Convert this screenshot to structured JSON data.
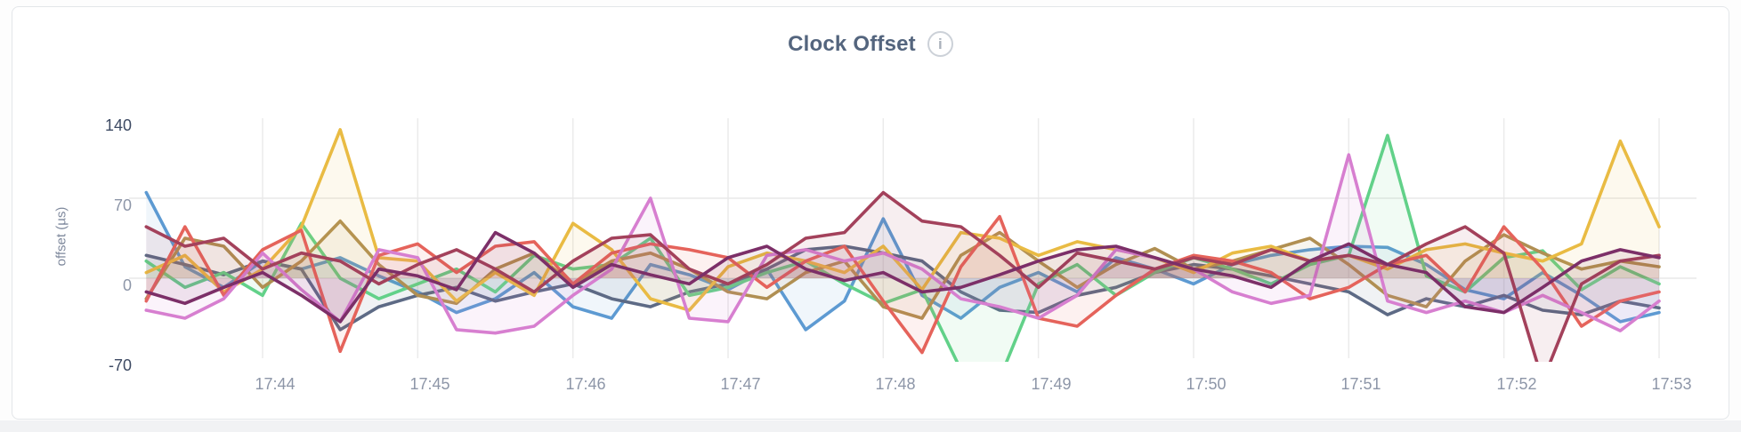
{
  "page": {
    "background": "#ffffff",
    "bottom_strip_color": "#f1f2f4"
  },
  "card": {
    "title": "Clock Offset",
    "title_color": "#54657e",
    "info_icon_glyph": "i"
  },
  "chart_data": {
    "type": "line",
    "title": "Clock Offset",
    "xlabel": "",
    "ylabel": "offset (µs)",
    "legend_position": "none",
    "grid": "on",
    "ylim": [
      -72.5,
      150
    ],
    "y_tick_values": [
      140,
      70,
      0,
      -70
    ],
    "y_tick_labels": [
      "140",
      "70",
      "0",
      "-70"
    ],
    "grid_y_values": [
      70,
      0
    ],
    "x_tick_labels": [
      "17:44",
      "17:45",
      "17:46",
      "17:47",
      "17:48",
      "17:49",
      "17:50",
      "17:51",
      "17:52",
      "17:53"
    ],
    "x_tick_minutes": [
      44,
      45,
      46,
      47,
      48,
      49,
      50,
      51,
      52,
      53
    ],
    "x_start_minute": 43.25,
    "x_step_minute": 0.25,
    "note_clipping": "values beyond -72 are clipped at the bottom of the plot",
    "series": [
      {
        "color": "#5d9ad2",
        "values": [
          75,
          10,
          -8,
          15,
          8,
          18,
          2,
          -12,
          -30,
          -18,
          5,
          -25,
          -35,
          12,
          3,
          -10,
          8,
          -45,
          -20,
          52,
          -15,
          -35,
          -8,
          5,
          -12,
          18,
          8,
          -5,
          12,
          20,
          25,
          28,
          27,
          12,
          -10,
          -18,
          5,
          -15,
          -38,
          -30
        ]
      },
      {
        "color": "#5d6a85",
        "values": [
          20,
          12,
          3,
          15,
          8,
          -45,
          -25,
          -15,
          -8,
          -20,
          -12,
          -5,
          -18,
          -25,
          -12,
          -5,
          8,
          25,
          28,
          22,
          15,
          -12,
          -28,
          -30,
          -15,
          -8,
          5,
          12,
          8,
          2,
          -5,
          -12,
          -32,
          -18,
          -25,
          -15,
          -28,
          -32,
          -20,
          -26
        ]
      },
      {
        "color": "#62d189",
        "values": [
          15,
          -8,
          5,
          -15,
          48,
          0,
          -18,
          -5,
          8,
          -12,
          20,
          8,
          12,
          35,
          -15,
          -8,
          5,
          15,
          -5,
          -22,
          -10,
          -80,
          -88,
          -5,
          12,
          -15,
          5,
          18,
          8,
          -5,
          12,
          20,
          125,
          2,
          -12,
          18,
          24,
          -10,
          10,
          -5
        ]
      },
      {
        "color": "#b08f52",
        "values": [
          -18,
          35,
          28,
          -8,
          15,
          50,
          12,
          -15,
          -22,
          8,
          22,
          -5,
          15,
          22,
          8,
          -12,
          -18,
          5,
          15,
          -25,
          -35,
          20,
          40,
          15,
          -8,
          12,
          26,
          8,
          15,
          25,
          35,
          12,
          -15,
          -25,
          15,
          38,
          22,
          8,
          15,
          10
        ]
      },
      {
        "color": "#e9bb43",
        "values": [
          5,
          20,
          -12,
          8,
          45,
          130,
          18,
          15,
          -20,
          5,
          -15,
          48,
          25,
          -18,
          -28,
          10,
          22,
          15,
          5,
          28,
          -10,
          40,
          35,
          20,
          32,
          25,
          18,
          5,
          22,
          28,
          15,
          20,
          8,
          25,
          30,
          22,
          15,
          30,
          120,
          45
        ]
      },
      {
        "color": "#e5635b",
        "values": [
          -20,
          45,
          -15,
          25,
          42,
          -64,
          20,
          30,
          5,
          28,
          32,
          -5,
          22,
          30,
          25,
          18,
          -8,
          15,
          28,
          -20,
          -65,
          10,
          54,
          -35,
          -42,
          -15,
          8,
          20,
          15,
          5,
          -18,
          -8,
          12,
          20,
          -12,
          45,
          8,
          -42,
          -20,
          -12
        ]
      },
      {
        "color": "#d77fd0",
        "values": [
          -28,
          -35,
          -18,
          22,
          -10,
          -38,
          25,
          18,
          -45,
          -48,
          -42,
          -15,
          8,
          70,
          -35,
          -38,
          20,
          25,
          15,
          22,
          8,
          -18,
          -25,
          -35,
          -15,
          25,
          18,
          8,
          -12,
          -22,
          -15,
          108,
          -20,
          -30,
          -20,
          -30,
          -15,
          -30,
          -46,
          -20
        ]
      },
      {
        "color": "#a3415b",
        "values": [
          45,
          28,
          35,
          8,
          22,
          15,
          -5,
          12,
          25,
          8,
          -12,
          15,
          35,
          38,
          8,
          -5,
          12,
          35,
          40,
          75,
          50,
          45,
          20,
          -8,
          22,
          15,
          8,
          18,
          12,
          25,
          15,
          20,
          12,
          30,
          45,
          22,
          -90,
          -5,
          15,
          20
        ]
      },
      {
        "color": "#7c2f68",
        "values": [
          -12,
          -22,
          -8,
          5,
          -15,
          -38,
          8,
          2,
          -10,
          40,
          22,
          -8,
          12,
          3,
          -5,
          18,
          28,
          8,
          -2,
          5,
          -12,
          -8,
          3,
          15,
          25,
          28,
          18,
          8,
          2,
          -8,
          15,
          30,
          12,
          5,
          -25,
          -30,
          -8,
          15,
          25,
          18
        ]
      }
    ]
  }
}
